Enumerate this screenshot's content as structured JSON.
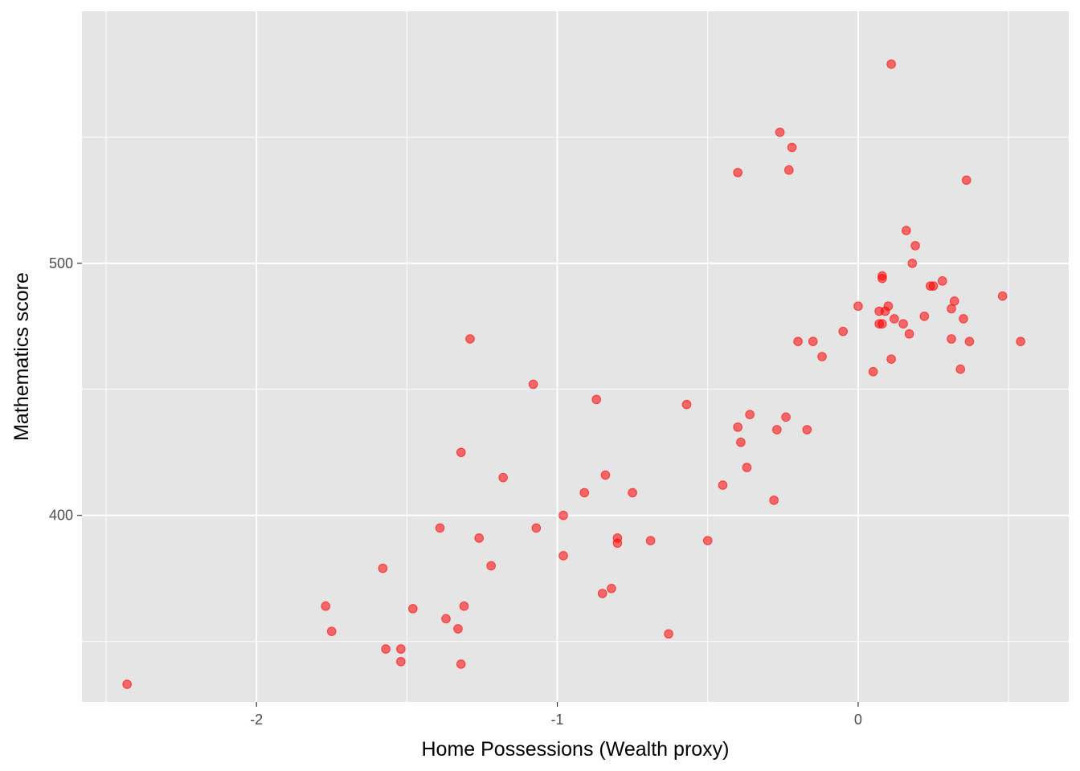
{
  "chart_data": {
    "type": "scatter",
    "title": "",
    "xlabel": "Home Possessions (Wealth proxy)",
    "ylabel": "Mathematics score",
    "xlim": [
      -2.58,
      0.7
    ],
    "ylim": [
      326,
      600
    ],
    "x_ticks": [
      -2,
      -1,
      0
    ],
    "x_tick_labels": [
      "-2",
      "-1",
      "0"
    ],
    "y_ticks": [
      400,
      500
    ],
    "y_tick_labels": [
      "400",
      "500"
    ],
    "grid": true,
    "legend": "none",
    "colors": {
      "point": "#ff0000",
      "panel": "#e5e5e5",
      "grid": "#ffffff"
    },
    "x": [
      -2.43,
      -1.77,
      -1.75,
      -1.58,
      -1.57,
      -1.52,
      -1.52,
      -1.48,
      -1.39,
      -1.37,
      -1.33,
      -1.32,
      -1.32,
      -1.31,
      -1.29,
      -1.26,
      -1.22,
      -1.18,
      -1.08,
      -1.07,
      -0.98,
      -0.98,
      -0.91,
      -0.87,
      -0.85,
      -0.84,
      -0.82,
      -0.8,
      -0.8,
      -0.75,
      -0.69,
      -0.63,
      -0.57,
      -0.5,
      -0.45,
      -0.4,
      -0.4,
      -0.39,
      -0.37,
      -0.36,
      -0.28,
      -0.27,
      -0.26,
      -0.24,
      -0.23,
      -0.22,
      -0.2,
      -0.17,
      -0.15,
      -0.12,
      -0.05,
      0.0,
      0.05,
      0.07,
      0.07,
      0.08,
      0.08,
      0.08,
      0.09,
      0.1,
      0.11,
      0.11,
      0.12,
      0.15,
      0.16,
      0.17,
      0.18,
      0.19,
      0.22,
      0.24,
      0.25,
      0.28,
      0.31,
      0.31,
      0.32,
      0.34,
      0.35,
      0.36,
      0.37,
      0.48,
      0.54
    ],
    "y": [
      333,
      364,
      354,
      379,
      347,
      347,
      342,
      363,
      395,
      359,
      355,
      425,
      341,
      364,
      470,
      391,
      380,
      415,
      452,
      395,
      400,
      384,
      409,
      446,
      369,
      416,
      371,
      389,
      391,
      409,
      390,
      353,
      444,
      390,
      412,
      435,
      536,
      429,
      419,
      440,
      406,
      434,
      552,
      439,
      537,
      546,
      469,
      434,
      469,
      463,
      473,
      483,
      457,
      476,
      481,
      495,
      494,
      476,
      481,
      483,
      462,
      579,
      478,
      476,
      513,
      472,
      500,
      507,
      479,
      491,
      491,
      493,
      470,
      482,
      485,
      458,
      478,
      533,
      469,
      487,
      469
    ]
  }
}
